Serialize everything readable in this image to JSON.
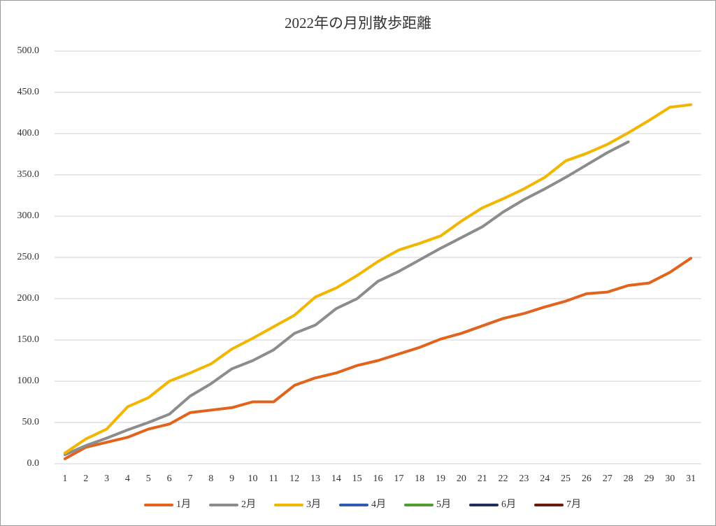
{
  "chart_data": {
    "type": "line",
    "title": "2022年の月別散歩距離",
    "categories": [
      "1",
      "2",
      "3",
      "4",
      "5",
      "6",
      "7",
      "8",
      "9",
      "10",
      "11",
      "12",
      "13",
      "14",
      "15",
      "16",
      "17",
      "18",
      "19",
      "20",
      "21",
      "22",
      "23",
      "24",
      "25",
      "26",
      "27",
      "28",
      "29",
      "30",
      "31"
    ],
    "series": [
      {
        "name": "1月",
        "color": "#e2641c",
        "values": [
          6,
          20,
          26,
          32,
          42,
          48,
          62,
          65,
          68,
          75,
          75,
          95,
          104,
          110,
          119,
          125,
          133,
          141,
          151,
          158,
          167,
          176,
          182,
          190,
          197,
          206,
          208,
          216,
          219,
          232,
          249
        ]
      },
      {
        "name": "2月",
        "color": "#8c8c8c",
        "values": [
          11,
          22,
          31,
          41,
          50,
          60,
          82,
          97,
          115,
          125,
          138,
          158,
          168,
          188,
          200,
          221,
          233,
          247,
          261,
          274,
          287,
          305,
          320,
          333,
          347,
          362,
          377,
          390,
          null,
          null,
          null
        ]
      },
      {
        "name": "3月",
        "color": "#f2b600",
        "values": [
          13,
          30,
          42,
          69,
          80,
          100,
          110,
          121,
          139,
          152,
          166,
          180,
          202,
          213,
          228,
          245,
          259,
          267,
          276,
          294,
          310,
          321,
          333,
          347,
          367,
          376,
          387,
          401,
          416,
          432,
          435
        ]
      },
      {
        "name": "4月",
        "color": "#2f5bb7",
        "values": [
          null,
          null,
          null,
          null,
          null,
          null,
          null,
          null,
          null,
          null,
          null,
          null,
          null,
          null,
          null,
          null,
          null,
          null,
          null,
          null,
          null,
          null,
          null,
          null,
          null,
          null,
          null,
          null,
          null,
          null,
          null
        ]
      },
      {
        "name": "5月",
        "color": "#4f9e2b",
        "values": [
          null,
          null,
          null,
          null,
          null,
          null,
          null,
          null,
          null,
          null,
          null,
          null,
          null,
          null,
          null,
          null,
          null,
          null,
          null,
          null,
          null,
          null,
          null,
          null,
          null,
          null,
          null,
          null,
          null,
          null,
          null
        ]
      },
      {
        "name": "6月",
        "color": "#1f2f5c",
        "values": [
          null,
          null,
          null,
          null,
          null,
          null,
          null,
          null,
          null,
          null,
          null,
          null,
          null,
          null,
          null,
          null,
          null,
          null,
          null,
          null,
          null,
          null,
          null,
          null,
          null,
          null,
          null,
          null,
          null,
          null,
          null
        ]
      },
      {
        "name": "7月",
        "color": "#6e1a0a",
        "values": [
          null,
          null,
          null,
          null,
          null,
          null,
          null,
          null,
          null,
          null,
          null,
          null,
          null,
          null,
          null,
          null,
          null,
          null,
          null,
          null,
          null,
          null,
          null,
          null,
          null,
          null,
          null,
          null,
          null,
          null,
          null
        ]
      }
    ],
    "ylim": [
      0,
      500
    ],
    "yticks": [
      {
        "value": 0,
        "label": "0.0"
      },
      {
        "value": 50,
        "label": "50.0"
      },
      {
        "value": 100,
        "label": "100.0"
      },
      {
        "value": 150,
        "label": "150.0"
      },
      {
        "value": 200,
        "label": "200.0"
      },
      {
        "value": 250,
        "label": "250.0"
      },
      {
        "value": 300,
        "label": "300.0"
      },
      {
        "value": 350,
        "label": "350.0"
      },
      {
        "value": 400,
        "label": "400.0"
      },
      {
        "value": 450,
        "label": "450.0"
      },
      {
        "value": 500,
        "label": "500.0"
      }
    ],
    "grid": true,
    "legend": "bottom"
  }
}
